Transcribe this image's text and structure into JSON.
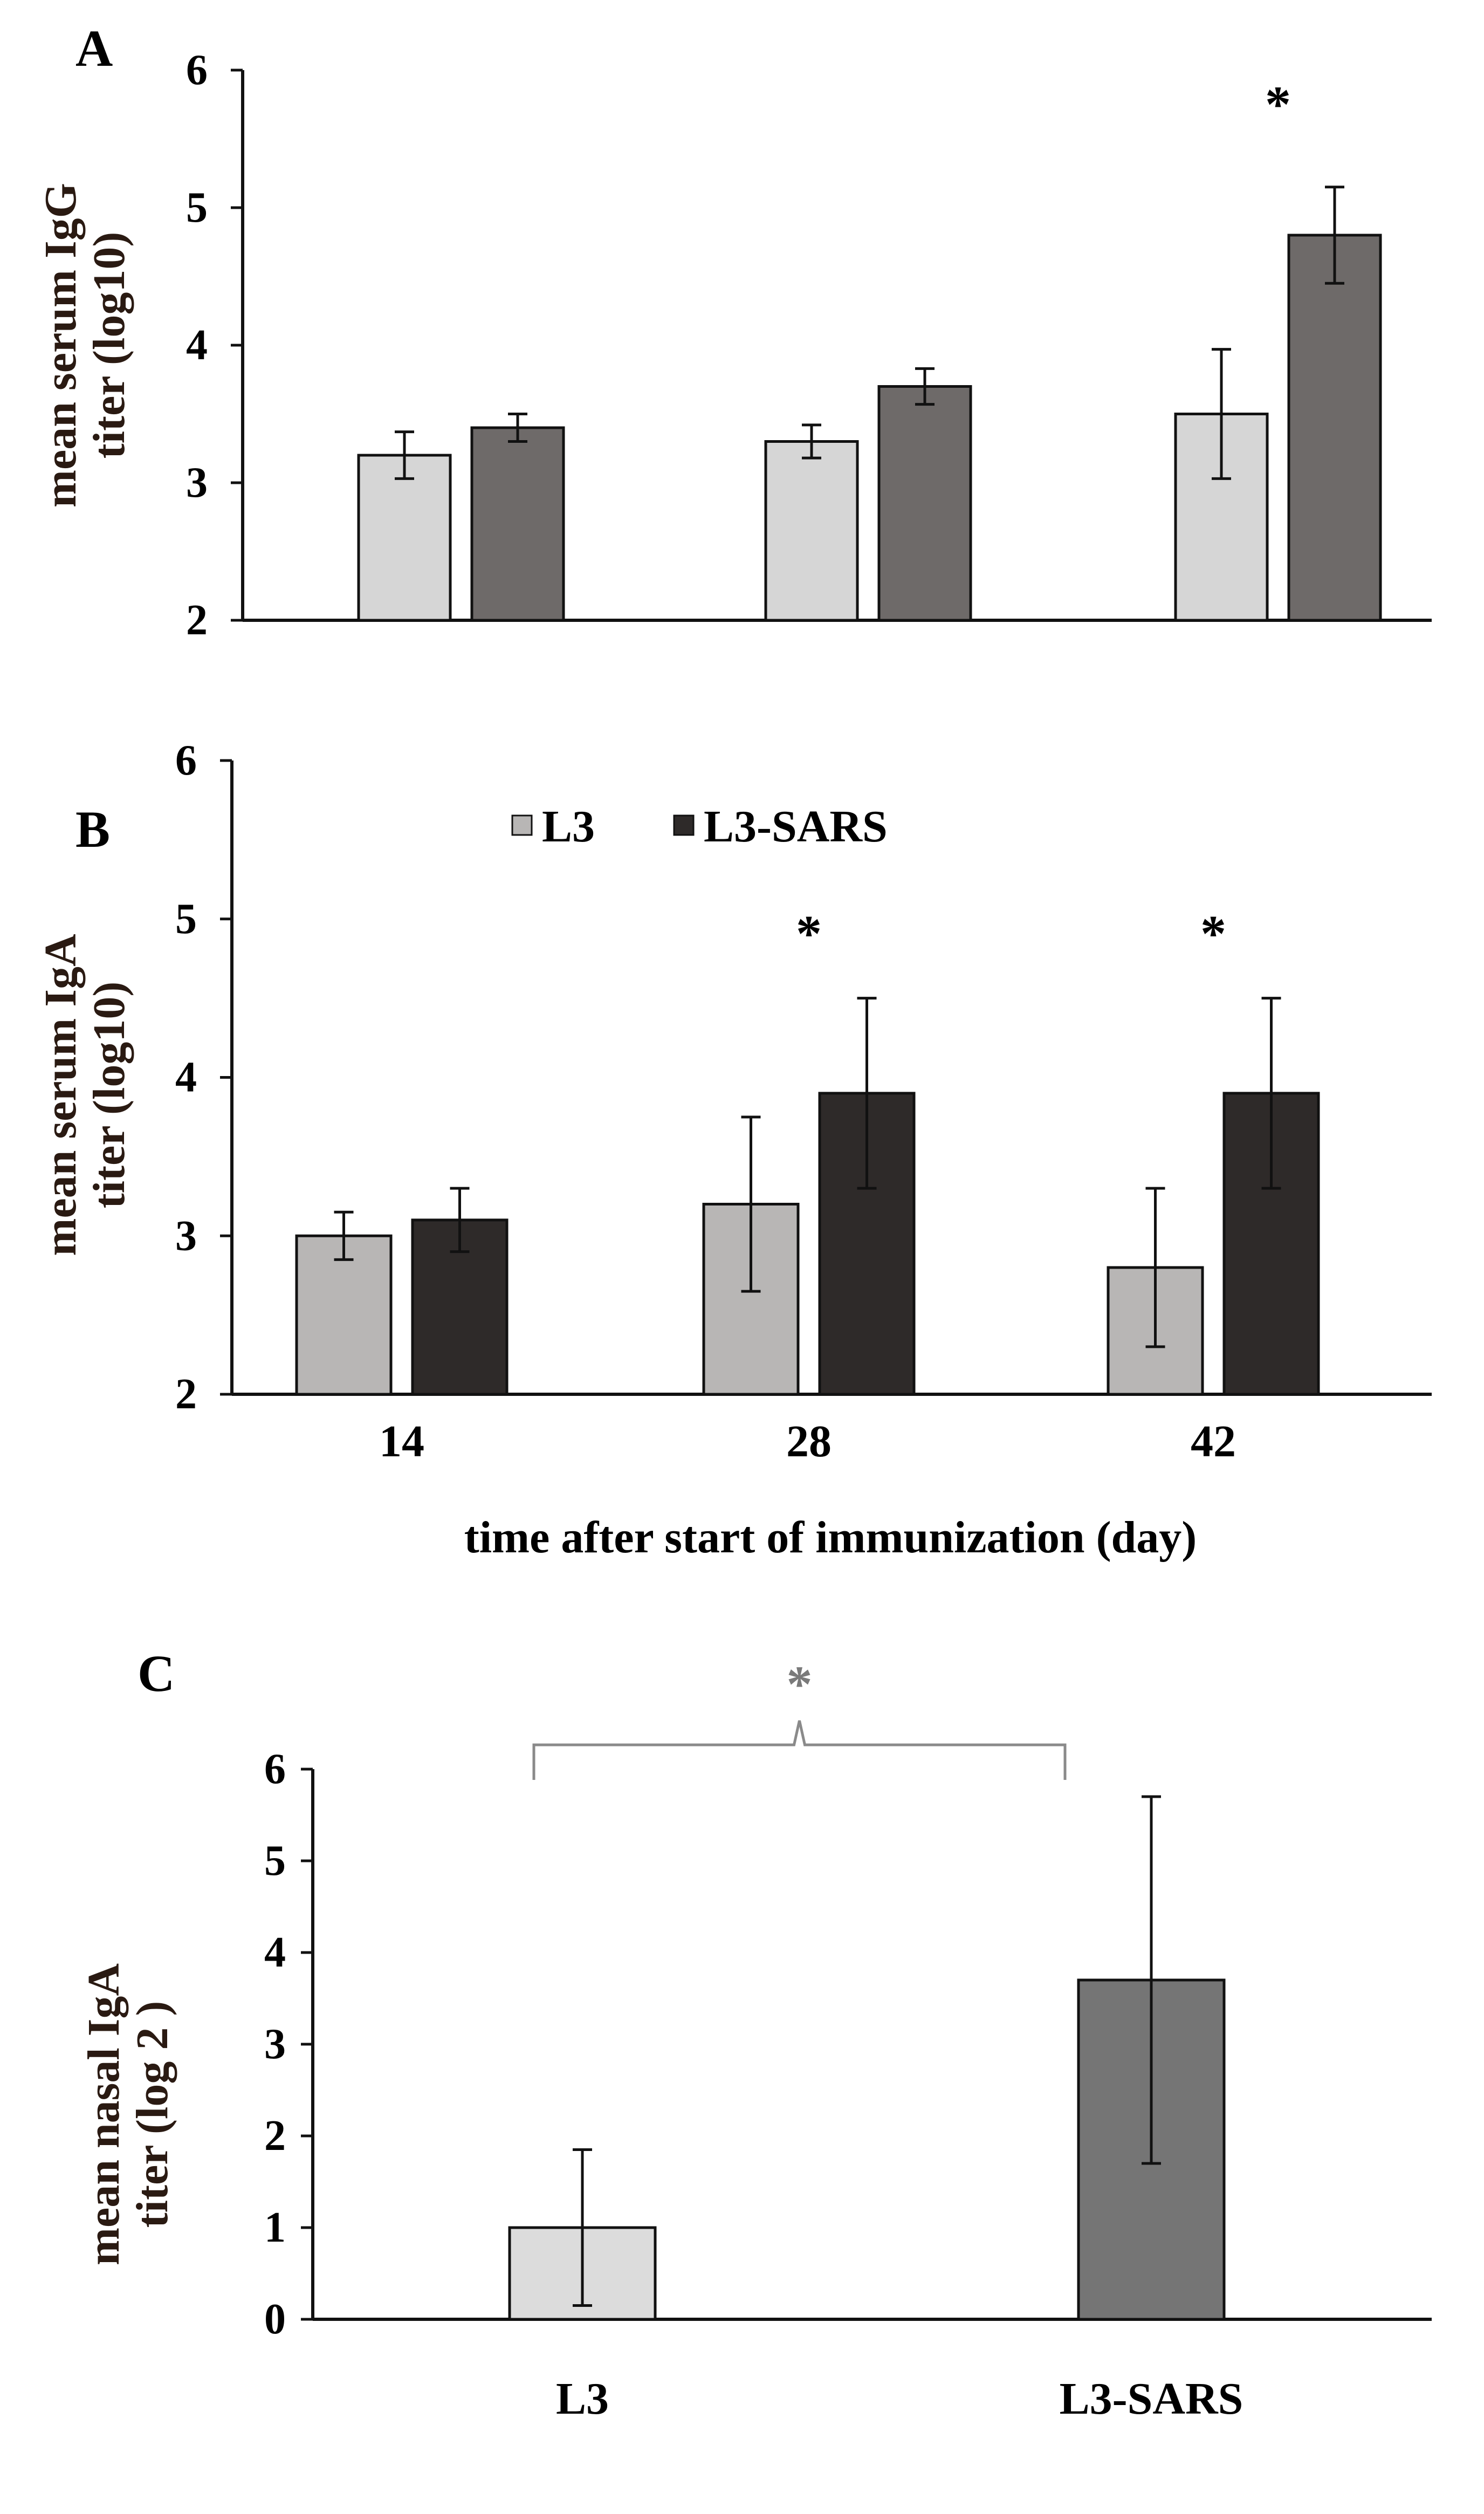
{
  "colors": {
    "axis": "#111111",
    "L3_AB": "#b8b6b5",
    "L3_A": "#d6d6d6",
    "L3SARS_A": "#6e6a69",
    "L3SARS_B": "#2e2a29",
    "L3_C": "#dcdcdc",
    "L3SARS_C": "#757575",
    "bracket": "#8a8a8a",
    "error_bar": "#111111"
  },
  "chart_data": [
    {
      "panel": "A",
      "type": "bar",
      "ylabel_line1": "mean serum IgG",
      "ylabel_line2": "titer (log10)",
      "ylim": [
        2,
        6
      ],
      "yticks": [
        "2",
        "3",
        "4",
        "5",
        "6"
      ],
      "categories": [
        "14",
        "28",
        "42"
      ],
      "series": [
        {
          "name": "L3",
          "values": [
            3.2,
            3.3,
            3.5
          ],
          "errors": [
            0.17,
            0.12,
            0.47
          ]
        },
        {
          "name": "L3-SARS",
          "values": [
            3.4,
            3.7,
            4.8
          ],
          "errors": [
            0.1,
            0.13,
            0.35
          ]
        }
      ],
      "significance": [
        {
          "category_index": 2,
          "y": 5.8,
          "label": "*"
        }
      ]
    },
    {
      "panel": "B",
      "type": "bar",
      "ylabel_line1": "mean serum IgA",
      "ylabel_line2": "titer (log10)",
      "ylim": [
        2,
        6
      ],
      "yticks": [
        "2",
        "3",
        "4",
        "5",
        "6"
      ],
      "categories": [
        "14",
        "28",
        "42"
      ],
      "xlabel": "time after start of immunization (day)",
      "legend": [
        "L3",
        "L3-SARS"
      ],
      "series": [
        {
          "name": "L3",
          "values": [
            3.0,
            3.2,
            2.8
          ],
          "errors": [
            0.15,
            0.55,
            0.5
          ]
        },
        {
          "name": "L3-SARS",
          "values": [
            3.1,
            3.9,
            3.9
          ],
          "errors": [
            0.2,
            0.6,
            0.6
          ]
        }
      ],
      "significance": [
        {
          "category_index": 1,
          "y": 4.95,
          "label": "*"
        },
        {
          "category_index": 2,
          "y": 4.95,
          "label": "*"
        }
      ]
    },
    {
      "panel": "C",
      "type": "bar",
      "ylabel_line1": "mean nasal IgA",
      "ylabel_line2": "titer (log 2 )",
      "ylim": [
        0,
        6
      ],
      "yticks": [
        "0",
        "1",
        "2",
        "3",
        "4",
        "5",
        "6"
      ],
      "categories": [
        "L3",
        "L3-SARS"
      ],
      "values": [
        1.0,
        3.7
      ],
      "errors": [
        0.85,
        2.0
      ],
      "significance": [
        {
          "between": [
            0,
            1
          ],
          "label": "*"
        }
      ]
    }
  ]
}
